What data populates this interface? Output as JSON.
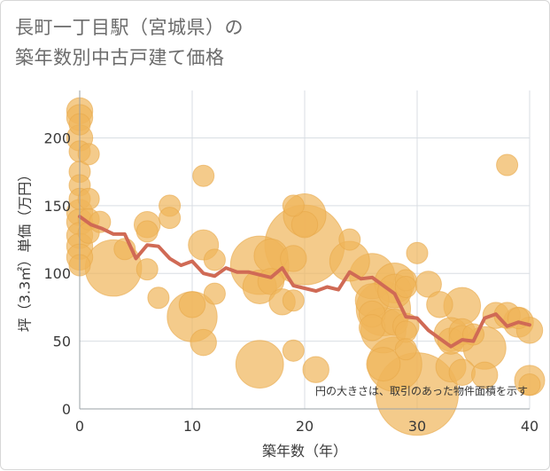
{
  "title_lines": [
    "長町一丁目駅（宮城県）の",
    "築年数別中古戸建て価格"
  ],
  "chart_data": {
    "type": "scatter",
    "xlabel": "築年数（年）",
    "ylabel": "坪（3.3㎡）単価（万円）",
    "xlim": [
      0,
      40
    ],
    "ylim": [
      0,
      235
    ],
    "x_ticks": [
      "0",
      "10",
      "20",
      "30",
      "40"
    ],
    "y_ticks": [
      "0",
      "50",
      "100",
      "150",
      "200"
    ],
    "grid": true,
    "note": "円の大きさは、取引のあった物件面積を示す",
    "colors": {
      "bubble": "#f0b55a",
      "bubble_edge": "#e8a84a",
      "line": "#d06a55",
      "grid": "#d9dee3",
      "axis": "#9aa0a6"
    },
    "series": [
      {
        "type": "bubble",
        "points": [
          {
            "x": 0,
            "y": 220,
            "size": 3
          },
          {
            "x": 0,
            "y": 215,
            "size": 3
          },
          {
            "x": 0,
            "y": 210,
            "size": 2
          },
          {
            "x": 0,
            "y": 200,
            "size": 3
          },
          {
            "x": 0,
            "y": 190,
            "size": 2
          },
          {
            "x": 0,
            "y": 175,
            "size": 2
          },
          {
            "x": 0,
            "y": 165,
            "size": 2
          },
          {
            "x": 0,
            "y": 155,
            "size": 2
          },
          {
            "x": 0,
            "y": 145,
            "size": 3
          },
          {
            "x": 0,
            "y": 138,
            "size": 3
          },
          {
            "x": 0,
            "y": 128,
            "size": 3
          },
          {
            "x": 0,
            "y": 120,
            "size": 3
          },
          {
            "x": 0,
            "y": 112,
            "size": 3
          },
          {
            "x": 0,
            "y": 106,
            "size": 2
          },
          {
            "x": 0.8,
            "y": 188,
            "size": 2
          },
          {
            "x": 0.8,
            "y": 155,
            "size": 2
          },
          {
            "x": 0.8,
            "y": 140,
            "size": 2
          },
          {
            "x": 0.8,
            "y": 130,
            "size": 2
          },
          {
            "x": 1.8,
            "y": 138,
            "size": 2
          },
          {
            "x": 3,
            "y": 104,
            "size": 14
          },
          {
            "x": 4,
            "y": 118,
            "size": 2
          },
          {
            "x": 6,
            "y": 136,
            "size": 3
          },
          {
            "x": 6,
            "y": 131,
            "size": 2
          },
          {
            "x": 6,
            "y": 103,
            "size": 2
          },
          {
            "x": 7,
            "y": 82,
            "size": 2
          },
          {
            "x": 8,
            "y": 150,
            "size": 2
          },
          {
            "x": 8,
            "y": 141,
            "size": 2
          },
          {
            "x": 10,
            "y": 77,
            "size": 3
          },
          {
            "x": 10,
            "y": 68,
            "size": 11
          },
          {
            "x": 11,
            "y": 172,
            "size": 2
          },
          {
            "x": 11,
            "y": 121,
            "size": 4
          },
          {
            "x": 11,
            "y": 49,
            "size": 3
          },
          {
            "x": 12,
            "y": 110,
            "size": 2
          },
          {
            "x": 12,
            "y": 85,
            "size": 2
          },
          {
            "x": 16,
            "y": 106,
            "size": 15
          },
          {
            "x": 16,
            "y": 90,
            "size": 5
          },
          {
            "x": 16,
            "y": 33,
            "size": 10
          },
          {
            "x": 17,
            "y": 113,
            "size": 5
          },
          {
            "x": 17,
            "y": 94,
            "size": 3
          },
          {
            "x": 18,
            "y": 79,
            "size": 3
          },
          {
            "x": 19,
            "y": 150,
            "size": 2
          },
          {
            "x": 19,
            "y": 111,
            "size": 3
          },
          {
            "x": 19,
            "y": 80,
            "size": 2
          },
          {
            "x": 19,
            "y": 43,
            "size": 2
          },
          {
            "x": 20,
            "y": 143,
            "size": 8
          },
          {
            "x": 20,
            "y": 121,
            "size": 28
          },
          {
            "x": 20,
            "y": 136,
            "size": 3
          },
          {
            "x": 21,
            "y": 29,
            "size": 3
          },
          {
            "x": 24,
            "y": 125,
            "size": 2
          },
          {
            "x": 24,
            "y": 109,
            "size": 7
          },
          {
            "x": 26,
            "y": 98,
            "size": 9
          },
          {
            "x": 26,
            "y": 80,
            "size": 5
          },
          {
            "x": 26,
            "y": 70,
            "size": 3
          },
          {
            "x": 26,
            "y": 60,
            "size": 3
          },
          {
            "x": 27,
            "y": 74,
            "size": 13
          },
          {
            "x": 27,
            "y": 58,
            "size": 9
          },
          {
            "x": 27,
            "y": 33,
            "size": 5
          },
          {
            "x": 28,
            "y": 93,
            "size": 7
          },
          {
            "x": 28,
            "y": 87,
            "size": 5
          },
          {
            "x": 28,
            "y": 64,
            "size": 3
          },
          {
            "x": 28,
            "y": 33,
            "size": 13
          },
          {
            "x": 29,
            "y": 95,
            "size": 2
          },
          {
            "x": 29,
            "y": 90,
            "size": 2
          },
          {
            "x": 29,
            "y": 61,
            "size": 3
          },
          {
            "x": 29,
            "y": 57,
            "size": 2
          },
          {
            "x": 29,
            "y": 44,
            "size": 2
          },
          {
            "x": 30,
            "y": 115,
            "size": 2
          },
          {
            "x": 30,
            "y": 11,
            "size": 30
          },
          {
            "x": 31,
            "y": 92,
            "size": 3
          },
          {
            "x": 32,
            "y": 77,
            "size": 3
          },
          {
            "x": 33,
            "y": 55,
            "size": 5
          },
          {
            "x": 33,
            "y": 50,
            "size": 3
          },
          {
            "x": 33,
            "y": 31,
            "size": 4
          },
          {
            "x": 34,
            "y": 76,
            "size": 6
          },
          {
            "x": 34,
            "y": 57,
            "size": 3
          },
          {
            "x": 34,
            "y": 52,
            "size": 3
          },
          {
            "x": 34,
            "y": 27,
            "size": 3
          },
          {
            "x": 35,
            "y": 55,
            "size": 2
          },
          {
            "x": 36,
            "y": 45,
            "size": 8
          },
          {
            "x": 36,
            "y": 25,
            "size": 3
          },
          {
            "x": 37,
            "y": 69,
            "size": 3
          },
          {
            "x": 38,
            "y": 180,
            "size": 2
          },
          {
            "x": 38,
            "y": 69,
            "size": 3
          },
          {
            "x": 39,
            "y": 67,
            "size": 2
          },
          {
            "x": 39,
            "y": 64,
            "size": 4
          },
          {
            "x": 40,
            "y": 58,
            "size": 3
          },
          {
            "x": 40,
            "y": 21,
            "size": 4
          },
          {
            "x": 40,
            "y": 18,
            "size": 2
          }
        ]
      },
      {
        "type": "line",
        "points": [
          {
            "x": 0,
            "y": 142
          },
          {
            "x": 1,
            "y": 136
          },
          {
            "x": 2,
            "y": 133
          },
          {
            "x": 3,
            "y": 129
          },
          {
            "x": 4,
            "y": 129
          },
          {
            "x": 5,
            "y": 111
          },
          {
            "x": 6,
            "y": 121
          },
          {
            "x": 7,
            "y": 120
          },
          {
            "x": 8,
            "y": 111
          },
          {
            "x": 9,
            "y": 106
          },
          {
            "x": 10,
            "y": 109
          },
          {
            "x": 11,
            "y": 100
          },
          {
            "x": 12,
            "y": 98
          },
          {
            "x": 13,
            "y": 104
          },
          {
            "x": 14,
            "y": 101
          },
          {
            "x": 15,
            "y": 101
          },
          {
            "x": 16,
            "y": 99
          },
          {
            "x": 17,
            "y": 97
          },
          {
            "x": 18,
            "y": 104
          },
          {
            "x": 19,
            "y": 91
          },
          {
            "x": 20,
            "y": 89
          },
          {
            "x": 21,
            "y": 87
          },
          {
            "x": 22,
            "y": 90
          },
          {
            "x": 23,
            "y": 88
          },
          {
            "x": 24,
            "y": 101
          },
          {
            "x": 25,
            "y": 96
          },
          {
            "x": 26,
            "y": 97
          },
          {
            "x": 27,
            "y": 91
          },
          {
            "x": 28,
            "y": 85
          },
          {
            "x": 29,
            "y": 68
          },
          {
            "x": 30,
            "y": 67
          },
          {
            "x": 31,
            "y": 58
          },
          {
            "x": 32,
            "y": 52
          },
          {
            "x": 33,
            "y": 46
          },
          {
            "x": 34,
            "y": 51
          },
          {
            "x": 35,
            "y": 50
          },
          {
            "x": 36,
            "y": 67
          },
          {
            "x": 37,
            "y": 70
          },
          {
            "x": 38,
            "y": 61
          },
          {
            "x": 39,
            "y": 64
          },
          {
            "x": 40,
            "y": 62
          }
        ]
      }
    ]
  }
}
